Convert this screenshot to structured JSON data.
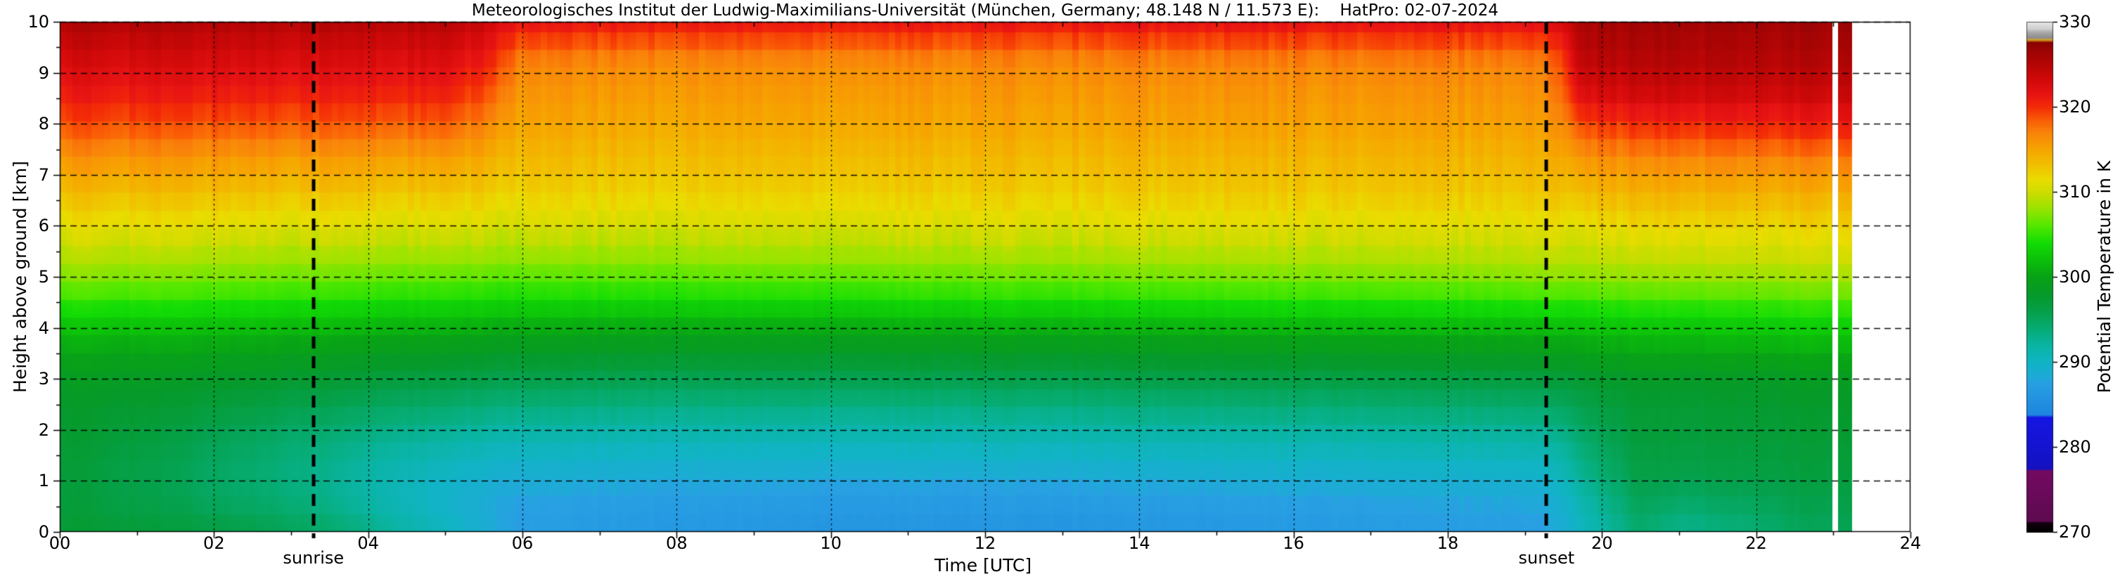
{
  "title": "Meteorologisches Institut der Ludwig-Maximilians-Universität (München, Germany; 48.148 N / 11.573 E):    HatPro: 02-07-2024",
  "axes": {
    "x_label": "Time [UTC]",
    "y_label": "Height above ground [km]",
    "x_ticks": [
      "00",
      "02",
      "04",
      "06",
      "08",
      "10",
      "12",
      "14",
      "16",
      "18",
      "20",
      "22",
      "24"
    ],
    "x_tick_hours": [
      0,
      2,
      4,
      6,
      8,
      10,
      12,
      14,
      16,
      18,
      20,
      22,
      24
    ],
    "y_ticks": [
      "0",
      "1",
      "2",
      "3",
      "4",
      "5",
      "6",
      "7",
      "8",
      "9",
      "10"
    ],
    "y_tick_km": [
      0,
      1,
      2,
      3,
      4,
      5,
      6,
      7,
      8,
      9,
      10
    ],
    "annotations": [
      {
        "label": "sunrise",
        "hour": 3.29
      },
      {
        "label": "sunset",
        "hour": 19.28
      }
    ]
  },
  "colorbar": {
    "label": "Potential Temperature in K",
    "tick_labels": [
      "270",
      "280",
      "290",
      "300",
      "310",
      "320",
      "330"
    ],
    "tick_values": [
      270,
      280,
      290,
      300,
      310,
      320,
      330
    ],
    "min": 270,
    "max": 330
  },
  "chart_data": {
    "type": "heatmap",
    "title": "Meteorologisches Institut der Ludwig-Maximilians-Universität (München, Germany; 48.148 N / 11.573 E):    HatPro: 02-07-2024",
    "xlabel": "Time [UTC]",
    "ylabel": "Height above ground [km]",
    "zlabel": "Potential Temperature in K",
    "xlim": [
      0,
      24
    ],
    "ylim": [
      0,
      10
    ],
    "zlim": [
      270,
      330
    ],
    "grid": true,
    "sunrise_hour": 3.29,
    "sunset_hour": 19.28,
    "data_gap_hours": [
      22.99,
      23.06
    ],
    "data_end_hour": 23.24,
    "times_hours": [
      0,
      1,
      2,
      3,
      4,
      5,
      5.6,
      6,
      8,
      10,
      12,
      14,
      16,
      18,
      19.2,
      19.45,
      19.7,
      20.5,
      21,
      21.8,
      22.5,
      23.24
    ],
    "heights_km": [
      0,
      0.3,
      0.7,
      1.2,
      1.8,
      2.4,
      3,
      3.5,
      4,
      4.4,
      4.8,
      5.3,
      6,
      6.6,
      7.2,
      7.9,
      8.6,
      9.2,
      9.6,
      10
    ],
    "theta_K": [
      [
        297.6,
        297.2,
        297.0,
        297.2,
        297.6,
        298.0,
        298.8,
        300.2,
        302.3,
        304.4,
        306.6,
        308.8,
        311.3,
        313.4,
        315.7,
        318.7,
        321.3,
        322.9,
        324.1,
        325.4
      ],
      [
        297.2,
        296.6,
        296.1,
        296.2,
        296.8,
        297.6,
        298.6,
        300.0,
        302.1,
        304.2,
        306.4,
        308.6,
        311.2,
        313.3,
        315.6,
        318.6,
        321.2,
        322.8,
        324.0,
        325.3
      ],
      [
        296.6,
        295.7,
        294.9,
        294.8,
        295.5,
        296.8,
        298.2,
        299.8,
        301.9,
        304.0,
        306.2,
        308.4,
        311.1,
        313.2,
        315.4,
        318.4,
        321.1,
        322.7,
        323.9,
        325.2
      ],
      [
        295.6,
        294.7,
        293.8,
        293.6,
        294.3,
        295.9,
        297.7,
        299.5,
        301.7,
        303.7,
        306.0,
        308.2,
        310.9,
        313.0,
        315.2,
        318.3,
        321.0,
        322.6,
        323.8,
        325.1
      ],
      [
        293.4,
        292.4,
        291.6,
        291.8,
        292.9,
        294.8,
        297.0,
        299.0,
        301.3,
        303.4,
        305.7,
        308.0,
        310.7,
        312.8,
        315.0,
        318.1,
        320.8,
        322.4,
        323.6,
        324.9
      ],
      [
        290.4,
        289.7,
        289.4,
        290.1,
        291.8,
        294.0,
        296.4,
        298.6,
        301.0,
        303.1,
        305.5,
        307.8,
        310.5,
        312.6,
        314.8,
        317.9,
        320.6,
        322.2,
        323.4,
        324.7
      ],
      [
        288.6,
        288.2,
        288.3,
        289.3,
        291.2,
        293.5,
        296.0,
        298.3,
        300.7,
        302.9,
        305.3,
        307.7,
        310.4,
        312.3,
        314.0,
        316.2,
        318.6,
        320.4,
        321.8,
        323.2
      ],
      [
        287.3,
        287.3,
        287.8,
        289.0,
        291.0,
        293.3,
        295.9,
        298.2,
        300.6,
        302.8,
        305.2,
        307.6,
        310.3,
        312.0,
        313.3,
        314.7,
        315.8,
        316.8,
        318.9,
        321.2
      ],
      [
        286.6,
        286.8,
        287.4,
        288.8,
        290.8,
        293.1,
        295.7,
        298.1,
        300.6,
        302.9,
        305.3,
        307.7,
        310.4,
        312.1,
        313.3,
        314.6,
        315.7,
        316.6,
        318.8,
        321.1
      ],
      [
        286.2,
        286.5,
        287.2,
        288.7,
        290.8,
        293.1,
        295.8,
        298.2,
        300.7,
        303.0,
        305.5,
        307.9,
        310.5,
        312.2,
        313.4,
        314.7,
        315.7,
        316.6,
        318.8,
        321.2
      ],
      [
        286.0,
        286.4,
        287.1,
        288.7,
        290.9,
        293.2,
        295.9,
        298.3,
        300.9,
        303.3,
        305.8,
        308.1,
        310.7,
        312.3,
        313.5,
        314.8,
        315.8,
        316.7,
        318.9,
        321.3
      ],
      [
        286.2,
        286.6,
        287.4,
        288.9,
        291.1,
        293.4,
        296.1,
        298.5,
        301.1,
        303.5,
        306.0,
        308.3,
        310.8,
        312.4,
        313.6,
        314.9,
        315.9,
        316.8,
        319.0,
        321.4
      ],
      [
        286.6,
        287.0,
        287.7,
        289.2,
        291.3,
        293.6,
        296.3,
        298.7,
        301.3,
        303.7,
        306.2,
        308.5,
        310.9,
        312.5,
        313.7,
        315.0,
        316.0,
        316.9,
        319.1,
        321.5
      ],
      [
        287.0,
        287.4,
        288.1,
        289.5,
        291.6,
        293.9,
        296.5,
        298.9,
        301.5,
        303.9,
        306.4,
        308.7,
        311.0,
        312.6,
        313.8,
        315.1,
        316.1,
        317.0,
        319.2,
        321.6
      ],
      [
        287.3,
        287.7,
        288.4,
        289.8,
        291.8,
        294.1,
        296.7,
        299.1,
        301.7,
        304.1,
        306.6,
        308.9,
        311.1,
        312.7,
        313.9,
        315.2,
        316.2,
        317.1,
        319.3,
        321.7
      ],
      [
        288.2,
        288.6,
        289.3,
        290.6,
        292.4,
        294.6,
        297.0,
        299.4,
        301.9,
        304.2,
        306.7,
        309.0,
        311.2,
        312.9,
        314.3,
        316.0,
        317.5,
        318.5,
        320.3,
        322.4
      ],
      [
        290.2,
        290.6,
        291.5,
        292.8,
        294.2,
        295.8,
        297.6,
        299.8,
        302.2,
        304.4,
        306.9,
        309.1,
        311.5,
        313.6,
        315.8,
        319.0,
        322.6,
        324.5,
        325.4,
        326.1
      ],
      [
        294.2,
        294.7,
        295.5,
        296.3,
        296.9,
        297.4,
        298.2,
        300.2,
        302.4,
        304.6,
        307.0,
        309.3,
        311.7,
        313.9,
        316.1,
        319.6,
        323.2,
        324.9,
        325.6,
        326.2
      ],
      [
        292.9,
        293.5,
        294.9,
        296.1,
        296.8,
        297.3,
        298.2,
        300.2,
        302.4,
        304.6,
        307.1,
        309.4,
        311.8,
        314.0,
        316.3,
        319.8,
        323.4,
        325.0,
        325.7,
        326.3
      ],
      [
        293.6,
        294.3,
        295.4,
        296.4,
        297.0,
        297.5,
        298.4,
        300.4,
        302.6,
        304.8,
        307.2,
        309.5,
        311.9,
        314.1,
        316.5,
        320.1,
        323.5,
        325.1,
        325.7,
        326.4
      ],
      [
        295.0,
        295.4,
        296.0,
        296.7,
        297.2,
        297.7,
        298.6,
        300.6,
        302.8,
        305.0,
        307.4,
        309.7,
        312.0,
        314.2,
        316.6,
        320.3,
        323.6,
        325.1,
        325.8,
        326.4
      ],
      [
        295.3,
        295.7,
        296.2,
        296.8,
        297.3,
        297.8,
        298.7,
        300.7,
        302.9,
        305.1,
        307.5,
        309.8,
        312.1,
        314.3,
        316.7,
        320.4,
        323.7,
        325.2,
        325.9,
        326.5
      ]
    ],
    "colormap_stops": [
      [
        270.0,
        "#000000"
      ],
      [
        271.1,
        "#120010"
      ],
      [
        271.3,
        "#5e0a50"
      ],
      [
        277.2,
        "#740a62"
      ],
      [
        277.45,
        "#1412c0"
      ],
      [
        283.5,
        "#1616e4"
      ],
      [
        283.8,
        "#1e86e0"
      ],
      [
        287.6,
        "#28a0e2"
      ],
      [
        288.2,
        "#1faad8"
      ],
      [
        290.0,
        "#10b4c4"
      ],
      [
        292.0,
        "#0ab4a2"
      ],
      [
        294.0,
        "#06ac72"
      ],
      [
        296.0,
        "#05a04a"
      ],
      [
        298.0,
        "#069a2a"
      ],
      [
        300.0,
        "#08a216"
      ],
      [
        302.0,
        "#0cc00a"
      ],
      [
        304.0,
        "#12dc05"
      ],
      [
        306.0,
        "#52e800"
      ],
      [
        308.0,
        "#98e400"
      ],
      [
        310.0,
        "#cfdc00"
      ],
      [
        311.5,
        "#eadc00"
      ],
      [
        313.0,
        "#f0c300"
      ],
      [
        315.0,
        "#f6a500"
      ],
      [
        317.0,
        "#f9840a"
      ],
      [
        318.5,
        "#fa5c06"
      ],
      [
        320.0,
        "#f32c06"
      ],
      [
        321.5,
        "#e81414"
      ],
      [
        323.0,
        "#d40a0a"
      ],
      [
        325.0,
        "#b60505"
      ],
      [
        326.6,
        "#9e0404"
      ],
      [
        327.6,
        "#8a0202"
      ],
      [
        327.9,
        "#d7a520"
      ],
      [
        328.15,
        "#8c8c8c"
      ],
      [
        328.8,
        "#aaaaaa"
      ],
      [
        329.2,
        "#cfcfcf"
      ],
      [
        330.0,
        "#e8e8e8"
      ]
    ]
  }
}
